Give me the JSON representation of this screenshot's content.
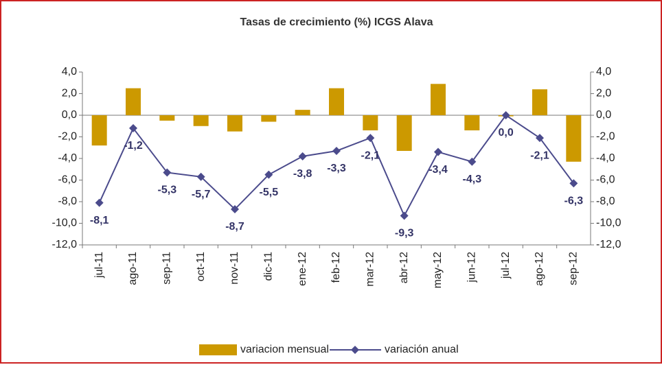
{
  "chart_data": {
    "type": "bar-line",
    "title": "Tasas de crecimiento (%) ICGS Alava",
    "categories": [
      "jul-11",
      "ago-11",
      "sep-11",
      "oct-11",
      "nov-11",
      "dic-11",
      "ene-12",
      "feb-12",
      "mar-12",
      "abr-12",
      "may-12",
      "jun-12",
      "jul-12",
      "ago-12",
      "sep-12"
    ],
    "series": [
      {
        "name": "variacion mensual",
        "type": "bar",
        "color": "#cc9900",
        "axis": "y",
        "values": [
          -2.8,
          2.5,
          -0.5,
          -1.0,
          -1.5,
          -0.6,
          0.5,
          2.5,
          -1.4,
          -3.3,
          2.9,
          -1.4,
          -0.1,
          2.4,
          -4.3
        ]
      },
      {
        "name": "variación anual",
        "type": "line",
        "color": "#4b4b8c",
        "axis": "y2",
        "values": [
          -8.1,
          -1.2,
          -5.3,
          -5.7,
          -8.7,
          -5.5,
          -3.8,
          -3.3,
          -2.1,
          -9.3,
          -3.4,
          -4.3,
          0.0,
          -2.1,
          -6.3
        ],
        "value_labels": [
          "-8,1",
          "-1,2",
          "-5,3",
          "-5,7",
          "-8,7",
          "-5,5",
          "-3,8",
          "-3,3",
          "-2,1",
          "-9,3",
          "-3,4",
          "-4,3",
          "0,0",
          "-2,1",
          "-6,3"
        ]
      }
    ],
    "ylim": [
      -12,
      4
    ],
    "yticks": [
      {
        "value": -12,
        "label": "-12,0"
      },
      {
        "value": -10,
        "label": "-10,0"
      },
      {
        "value": -8,
        "label": "-8,0"
      },
      {
        "value": -6,
        "label": "-6,0"
      },
      {
        "value": -4,
        "label": "-4,0"
      },
      {
        "value": -2,
        "label": "-2,0"
      },
      {
        "value": 0,
        "label": "0,0"
      },
      {
        "value": 2,
        "label": "2,0"
      },
      {
        "value": 4,
        "label": "4,0"
      }
    ],
    "y2lim": [
      -12,
      4
    ],
    "y2ticks": [
      {
        "value": -12,
        "label": "-12,0"
      },
      {
        "value": -10,
        "label": "-10,0"
      },
      {
        "value": -8,
        "label": "-8,0"
      },
      {
        "value": -6,
        "label": "-6,0"
      },
      {
        "value": -4,
        "label": "-4,0"
      },
      {
        "value": -2,
        "label": "-2,0"
      },
      {
        "value": 0,
        "label": "0,0"
      },
      {
        "value": 2,
        "label": "2,0"
      },
      {
        "value": 4,
        "label": "4,0"
      }
    ],
    "legend": "bottom"
  }
}
